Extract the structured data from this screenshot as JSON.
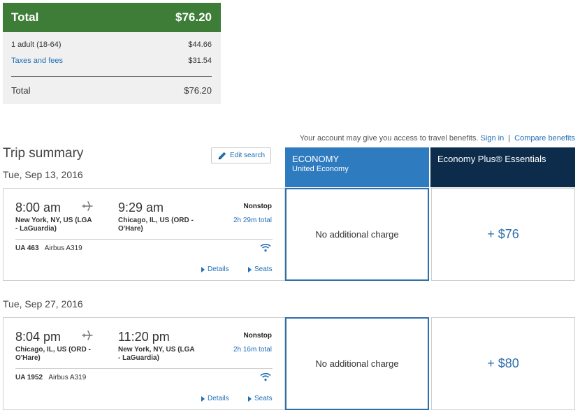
{
  "price_summary": {
    "header_label": "Total",
    "header_amount": "$76.20",
    "rows": [
      {
        "label": "1 adult (18-64)",
        "amount": "$44.66"
      },
      {
        "label": "Taxes and fees",
        "amount": "$31.54"
      }
    ],
    "total_label": "Total",
    "total_amount": "$76.20"
  },
  "benefits": {
    "text": "Your account may give you access to travel benefits.",
    "sign_in": "Sign in",
    "separator": "|",
    "compare": "Compare benefits"
  },
  "trip_summary": {
    "title": "Trip summary",
    "edit_search": "Edit search"
  },
  "columns": {
    "economy_title": "ECONOMY",
    "economy_sub": "United Economy",
    "plus_title": "Economy Plus® Essentials"
  },
  "flights": [
    {
      "date": "Tue, Sep 13, 2016",
      "depart_time": "8:00 am",
      "depart_city": "New York, NY, US (LGA - LaGuardia)",
      "arrive_time": "9:29 am",
      "arrive_city": "Chicago, IL, US (ORD - O'Hare)",
      "stops": "Nonstop",
      "duration": "2h 29m total",
      "flight_number": "UA 463",
      "aircraft": "Airbus A319",
      "details": "Details",
      "seats": "Seats",
      "economy_price": "No additional charge",
      "plus_price": "+ $76"
    },
    {
      "date": "Tue, Sep 27, 2016",
      "depart_time": "8:04 pm",
      "depart_city": "Chicago, IL, US (ORD - O'Hare)",
      "arrive_time": "11:20 pm",
      "arrive_city": "New York, NY, US (LGA - LaGuardia)",
      "stops": "Nonstop",
      "duration": "2h 16m total",
      "flight_number": "UA 1952",
      "aircraft": "Airbus A319",
      "details": "Details",
      "seats": "Seats",
      "economy_price": "No additional charge",
      "plus_price": "+ $80"
    }
  ],
  "icons": [
    "pencil-icon",
    "plane-icon",
    "wifi-icon",
    "triangle-right-icon"
  ],
  "colors": {
    "total_header": "#3d7d37",
    "economy": "#2f7bc0",
    "economy_plus": "#0d2c4b",
    "link": "#1f6fb5"
  }
}
